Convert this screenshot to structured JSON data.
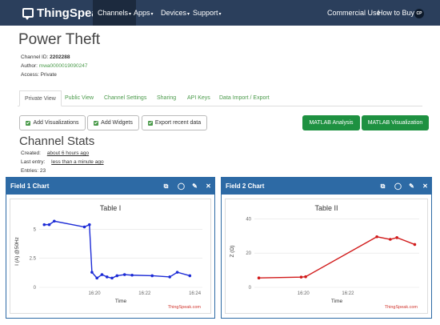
{
  "nav": {
    "brand": "ThingSpeak",
    "superscript": "™",
    "items": [
      "Channels",
      "Apps",
      "Devices",
      "Support"
    ],
    "right_items": [
      "Commercial Use",
      "How to Buy"
    ],
    "avatar_initials": "CP"
  },
  "channel": {
    "title": "Power Theft",
    "id_label": "Channel ID:",
    "id_value": "2202288",
    "author_label": "Author:",
    "author_value": "mwa0000019090247",
    "access_label": "Access:",
    "access_value": "Private"
  },
  "tabs": [
    "Private View",
    "Public View",
    "Channel Settings",
    "Sharing",
    "API Keys",
    "Data Import / Export"
  ],
  "buttons": {
    "add_visualizations": "Add Visualizations",
    "add_widgets": "Add Widgets",
    "export_recent": "Export recent data",
    "matlab_analysis": "MATLAB Analysis",
    "matlab_visualization": "MATLAB Visualization"
  },
  "stats": {
    "title": "Channel Stats",
    "created_label": "Created:",
    "created_value": "about 6 hours ago",
    "last_entry_label": "Last entry:",
    "last_entry_value": "less than a minute ago",
    "entries_label": "Entries:",
    "entries_value": "23"
  },
  "panels": [
    {
      "title": "Field 1 Chart"
    },
    {
      "title": "Field 2 Chart"
    }
  ],
  "colors": {
    "navbar": "#2b3f5c",
    "panel_header": "#2d6aa5",
    "green_button": "#1e9141",
    "link_green": "#4a9a4a",
    "field1_line": "#1c2bd6",
    "field2_line": "#d11a1a"
  },
  "chart_data": [
    {
      "type": "line",
      "title": "Table I",
      "xlabel": "Time",
      "ylabel": "I (A) @50Hz",
      "x_ticks": [
        "16:20",
        "16:22",
        "16:24"
      ],
      "x_tick_minutes": [
        0,
        2,
        4
      ],
      "y_ticks": [
        "0",
        "2.5",
        "5"
      ],
      "y_tick_values": [
        0,
        2.5,
        5
      ],
      "ylim": [
        0,
        6.2
      ],
      "xlim": [
        -2.2,
        4.3
      ],
      "credit": "ThingSpeak.com",
      "series": [
        {
          "x": [
            -2.0,
            -1.8,
            -1.6,
            -0.4,
            -0.2,
            -0.1,
            0.1,
            0.3,
            0.5,
            0.7,
            0.9,
            1.2,
            1.5,
            2.3,
            3.0,
            3.3,
            3.8
          ],
          "values": [
            5.4,
            5.4,
            5.7,
            5.2,
            5.4,
            1.3,
            0.8,
            1.1,
            0.9,
            0.8,
            1.0,
            1.1,
            1.05,
            1.0,
            0.9,
            1.3,
            1.0
          ]
        }
      ]
    },
    {
      "type": "line",
      "title": "Table II",
      "xlabel": "Time",
      "ylabel": "Z (Ω)",
      "x_ticks": [
        "16:20",
        "16:22"
      ],
      "x_tick_minutes": [
        0,
        2
      ],
      "y_ticks": [
        "0",
        "20",
        "40"
      ],
      "y_tick_values": [
        0,
        20,
        40
      ],
      "ylim": [
        0,
        42
      ],
      "xlim": [
        -2.2,
        5.2
      ],
      "credit": "ThingSpeak.com",
      "series": [
        {
          "x": [
            -2.0,
            -0.1,
            0.1,
            3.3,
            3.9,
            4.2,
            5.0
          ],
          "values": [
            5.5,
            6.0,
            6.2,
            29.5,
            28.0,
            29.0,
            25.0
          ]
        }
      ]
    }
  ]
}
